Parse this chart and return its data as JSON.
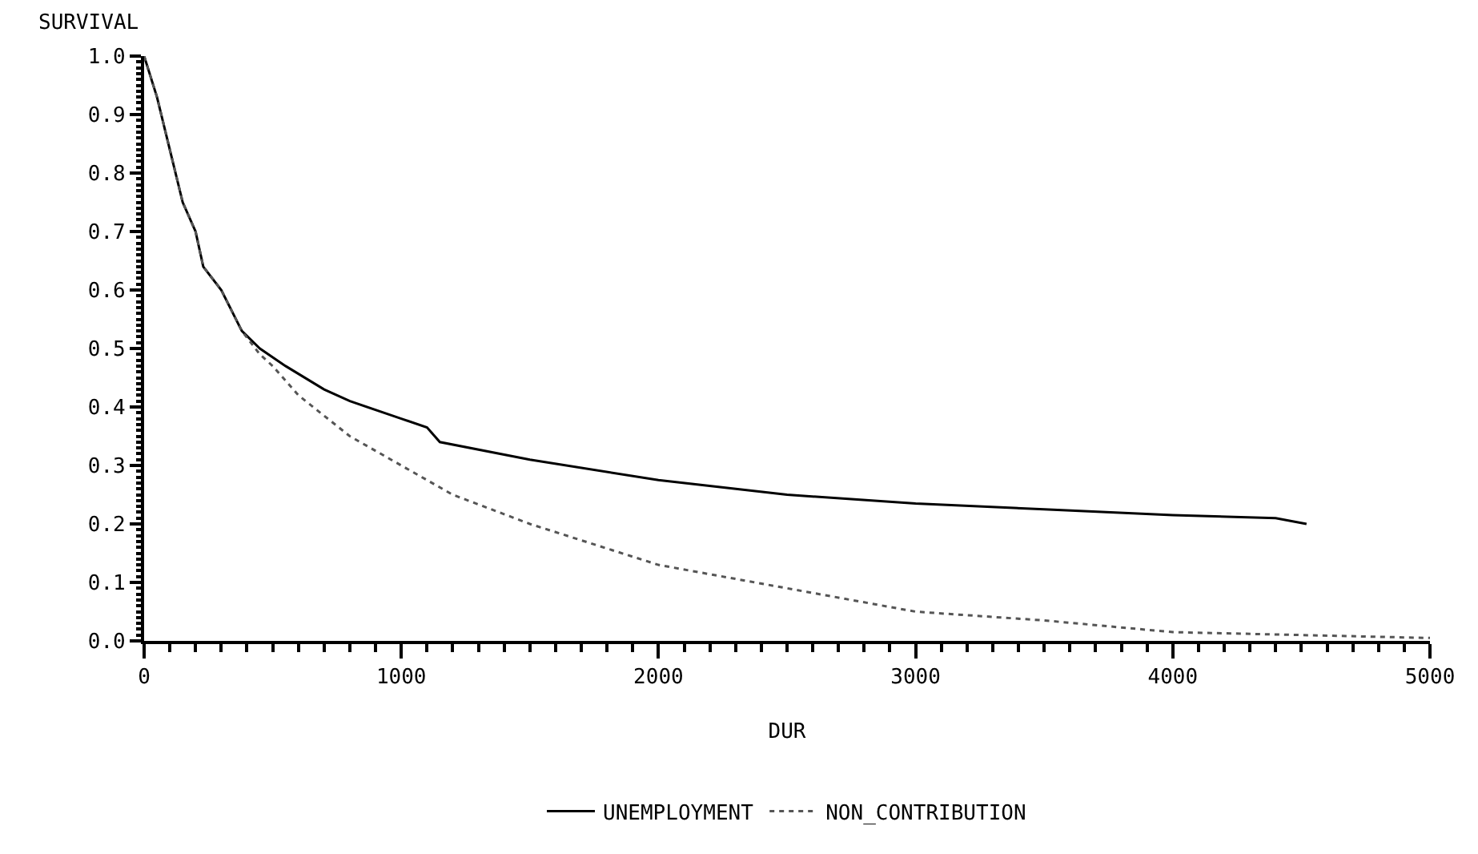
{
  "chart_data": {
    "type": "line",
    "xlabel": "DUR",
    "ylabel": "SURVIVAL",
    "xlim": [
      0,
      5000
    ],
    "ylim": [
      0,
      1
    ],
    "xticks": [
      0,
      1000,
      2000,
      3000,
      4000,
      5000
    ],
    "yticks": [
      {
        "value": 0,
        "label": "0.0"
      },
      {
        "value": 0.1,
        "label": "0.1"
      },
      {
        "value": 0.2,
        "label": "0.2"
      },
      {
        "value": 0.3,
        "label": "0.3"
      },
      {
        "value": 0.4,
        "label": "0.4"
      },
      {
        "value": 0.5,
        "label": "0.5"
      },
      {
        "value": 0.6,
        "label": "0.6"
      },
      {
        "value": 0.7,
        "label": "0.7"
      },
      {
        "value": 0.8,
        "label": "0.8"
      },
      {
        "value": 0.9,
        "label": "0.9"
      },
      {
        "value": 1,
        "label": "1.0"
      }
    ],
    "grid": false,
    "legend": "bottom",
    "marker": "none",
    "series": [
      {
        "name": "UNEMPLOYMENT",
        "color": "#000000",
        "line_style": "solid",
        "x": [
          0,
          50,
          100,
          150,
          200,
          230,
          300,
          380,
          450,
          550,
          700,
          800,
          1000,
          1100,
          1150,
          1500,
          2000,
          2500,
          3000,
          3500,
          4000,
          4400,
          4520
        ],
        "values": [
          1.0,
          0.93,
          0.84,
          0.75,
          0.7,
          0.64,
          0.6,
          0.53,
          0.5,
          0.47,
          0.43,
          0.41,
          0.38,
          0.365,
          0.34,
          0.31,
          0.275,
          0.25,
          0.235,
          0.225,
          0.215,
          0.21,
          0.2
        ]
      },
      {
        "name": "NON_CONTRIBUTION",
        "color": "#555555",
        "line_style": "dotted",
        "x": [
          0,
          50,
          100,
          150,
          200,
          230,
          300,
          380,
          450,
          500,
          600,
          800,
          1000,
          1200,
          1500,
          2000,
          2500,
          3000,
          3500,
          4000,
          4500,
          5000
        ],
        "values": [
          1.0,
          0.93,
          0.84,
          0.75,
          0.7,
          0.64,
          0.6,
          0.53,
          0.49,
          0.47,
          0.42,
          0.35,
          0.3,
          0.25,
          0.2,
          0.13,
          0.09,
          0.05,
          0.035,
          0.015,
          0.01,
          0.005
        ]
      }
    ]
  }
}
